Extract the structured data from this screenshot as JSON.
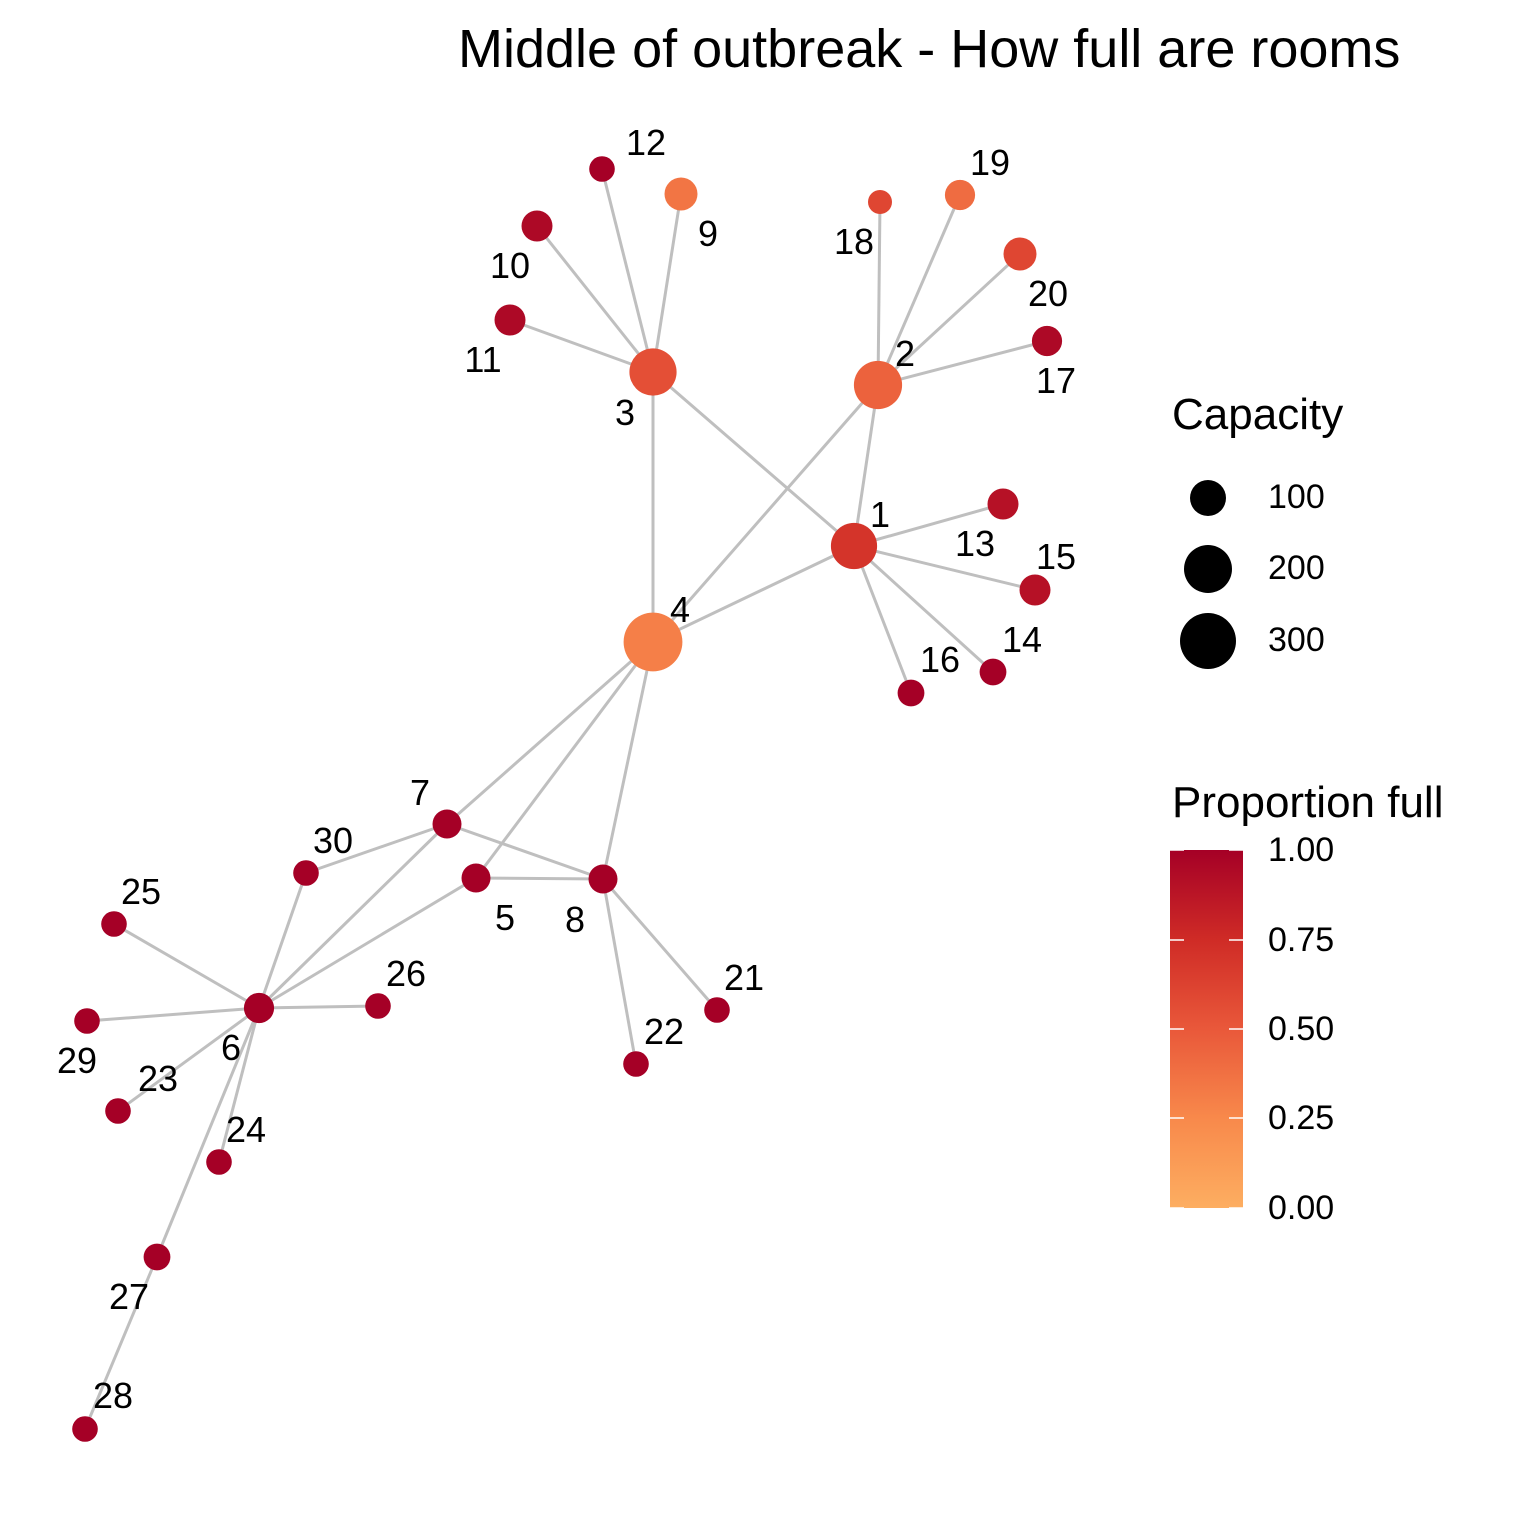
{
  "title": "Middle of outbreak - How full are rooms",
  "colors": {
    "edge": "#bfbfbf",
    "scale_low": "#fdae61",
    "scale_mid_low": "#f46d43",
    "scale_mid": "#e34a33",
    "scale_mid_high": "#d7301f",
    "scale_high": "#a50026"
  },
  "legend": {
    "capacity": {
      "title": "Capacity",
      "items": [
        {
          "label": "100",
          "value": 100
        },
        {
          "label": "200",
          "value": 200
        },
        {
          "label": "300",
          "value": 300
        }
      ]
    },
    "proportion": {
      "title": "Proportion full",
      "ticks": [
        {
          "label": "1.00",
          "value": 1.0
        },
        {
          "label": "0.75",
          "value": 0.75
        },
        {
          "label": "0.50",
          "value": 0.5
        },
        {
          "label": "0.25",
          "value": 0.25
        },
        {
          "label": "0.00",
          "value": 0.0
        }
      ]
    }
  },
  "nodes": [
    {
      "id": "1",
      "capacity": 160,
      "proportion": 0.7
    },
    {
      "id": "2",
      "capacity": 180,
      "proportion": 0.45
    },
    {
      "id": "3",
      "capacity": 170,
      "proportion": 0.55
    },
    {
      "id": "4",
      "capacity": 300,
      "proportion": 0.3
    },
    {
      "id": "5",
      "capacity": 40,
      "proportion": 1.0
    },
    {
      "id": "6",
      "capacity": 45,
      "proportion": 1.0
    },
    {
      "id": "7",
      "capacity": 40,
      "proportion": 1.0
    },
    {
      "id": "8",
      "capacity": 40,
      "proportion": 1.0
    },
    {
      "id": "9",
      "capacity": 60,
      "proportion": 0.35
    },
    {
      "id": "10",
      "capacity": 50,
      "proportion": 0.95
    },
    {
      "id": "11",
      "capacity": 50,
      "proportion": 0.95
    },
    {
      "id": "12",
      "capacity": 25,
      "proportion": 1.0
    },
    {
      "id": "13",
      "capacity": 50,
      "proportion": 0.9
    },
    {
      "id": "14",
      "capacity": 30,
      "proportion": 1.0
    },
    {
      "id": "15",
      "capacity": 50,
      "proportion": 0.9
    },
    {
      "id": "16",
      "capacity": 30,
      "proportion": 1.0
    },
    {
      "id": "17",
      "capacity": 45,
      "proportion": 0.95
    },
    {
      "id": "18",
      "capacity": 20,
      "proportion": 0.6
    },
    {
      "id": "19",
      "capacity": 45,
      "proportion": 0.4
    },
    {
      "id": "20",
      "capacity": 60,
      "proportion": 0.6
    },
    {
      "id": "21",
      "capacity": 25,
      "proportion": 1.0
    },
    {
      "id": "22",
      "capacity": 25,
      "proportion": 1.0
    },
    {
      "id": "23",
      "capacity": 25,
      "proportion": 1.0
    },
    {
      "id": "24",
      "capacity": 25,
      "proportion": 1.0
    },
    {
      "id": "25",
      "capacity": 25,
      "proportion": 1.0
    },
    {
      "id": "26",
      "capacity": 25,
      "proportion": 1.0
    },
    {
      "id": "27",
      "capacity": 30,
      "proportion": 1.0
    },
    {
      "id": "28",
      "capacity": 25,
      "proportion": 1.0
    },
    {
      "id": "29",
      "capacity": 25,
      "proportion": 1.0
    },
    {
      "id": "30",
      "capacity": 25,
      "proportion": 1.0
    }
  ],
  "edges": [
    [
      "3",
      "12"
    ],
    [
      "3",
      "9"
    ],
    [
      "3",
      "10"
    ],
    [
      "3",
      "11"
    ],
    [
      "3",
      "1"
    ],
    [
      "3",
      "4"
    ],
    [
      "2",
      "18"
    ],
    [
      "2",
      "19"
    ],
    [
      "2",
      "20"
    ],
    [
      "2",
      "17"
    ],
    [
      "2",
      "1"
    ],
    [
      "2",
      "4"
    ],
    [
      "1",
      "13"
    ],
    [
      "1",
      "15"
    ],
    [
      "1",
      "14"
    ],
    [
      "1",
      "16"
    ],
    [
      "1",
      "4"
    ],
    [
      "4",
      "7"
    ],
    [
      "4",
      "5"
    ],
    [
      "4",
      "8"
    ],
    [
      "7",
      "30"
    ],
    [
      "7",
      "6"
    ],
    [
      "7",
      "8"
    ],
    [
      "5",
      "8"
    ],
    [
      "5",
      "6"
    ],
    [
      "8",
      "21"
    ],
    [
      "8",
      "22"
    ],
    [
      "6",
      "30"
    ],
    [
      "6",
      "25"
    ],
    [
      "6",
      "29"
    ],
    [
      "6",
      "26"
    ],
    [
      "6",
      "23"
    ],
    [
      "6",
      "24"
    ],
    [
      "6",
      "27"
    ],
    [
      "27",
      "28"
    ]
  ]
}
